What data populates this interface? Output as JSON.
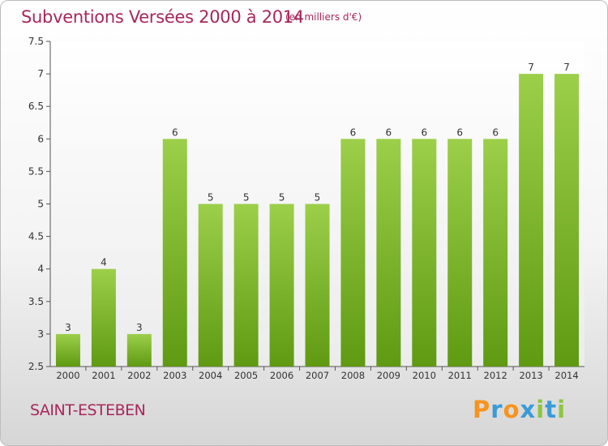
{
  "header": {
    "title": "Subventions Versées 2000 à 2014",
    "unit": "(en milliers d'€)"
  },
  "footer": {
    "place": "SAINT-ESTEBEN",
    "logo": "Proxiti"
  },
  "colors": {
    "title": "#a8275c",
    "bar_top": "#9ccf4a",
    "bar_bottom": "#5f9a12",
    "axis": "#555555"
  },
  "chart_data": {
    "type": "bar",
    "categories": [
      "2000",
      "2001",
      "2002",
      "2003",
      "2004",
      "2005",
      "2006",
      "2007",
      "2008",
      "2009",
      "2010",
      "2011",
      "2012",
      "2013",
      "2014"
    ],
    "values": [
      3,
      4,
      3,
      6,
      5,
      5,
      5,
      5,
      6,
      6,
      6,
      6,
      6,
      7,
      7
    ],
    "data_labels": [
      "3",
      "4",
      "3",
      "6",
      "5",
      "5",
      "5",
      "5",
      "6",
      "6",
      "6",
      "6",
      "6",
      "7",
      "7"
    ],
    "yticks": [
      "2.5",
      "3",
      "3.5",
      "4",
      "4.5",
      "5",
      "5.5",
      "6",
      "6.5",
      "7",
      "7.5"
    ],
    "ylim": [
      2.5,
      7.5
    ],
    "grid": false
  }
}
